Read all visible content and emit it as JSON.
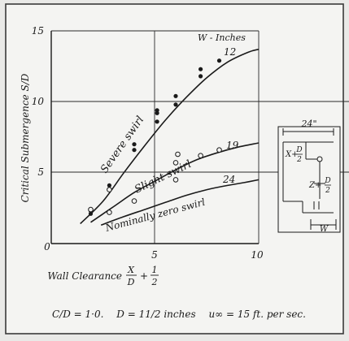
{
  "chart_data": {
    "type": "scatter",
    "title": "",
    "xlabel": "Wall Clearance",
    "xlabel_expr": {
      "num": "X",
      "den": "D",
      "plus": "+",
      "fnum": "1",
      "fden": "2"
    },
    "ylabel": "Critical Submergence S/D",
    "xlim": [
      0,
      10
    ],
    "ylim": [
      0,
      15
    ],
    "x_ticks": [
      "0",
      "5",
      "10"
    ],
    "y_ticks": [
      "5",
      "10",
      "15"
    ],
    "grid": true,
    "legend_header": "W - Inches",
    "series": [
      {
        "name": "Severe swirl",
        "w_label": "12",
        "marker": "filled",
        "color": "#1a1a1a",
        "points": [
          [
            1.9,
            2.1
          ],
          [
            1.9,
            2.3
          ],
          [
            2.8,
            3.8
          ],
          [
            2.8,
            4.1
          ],
          [
            4.0,
            6.6
          ],
          [
            4.0,
            7.0
          ],
          [
            5.1,
            8.6
          ],
          [
            5.1,
            9.2
          ],
          [
            5.1,
            9.4
          ],
          [
            6.0,
            9.8
          ],
          [
            6.0,
            10.4
          ],
          [
            7.2,
            11.8
          ],
          [
            7.2,
            12.3
          ],
          [
            8.1,
            12.9
          ]
        ],
        "curve": [
          [
            1.4,
            1.4
          ],
          [
            2.5,
            3.0
          ],
          [
            3.5,
            5.0
          ],
          [
            4.5,
            6.9
          ],
          [
            5.5,
            8.7
          ],
          [
            6.5,
            10.3
          ],
          [
            7.5,
            11.7
          ],
          [
            8.5,
            12.8
          ],
          [
            9.5,
            13.5
          ],
          [
            10.0,
            13.7
          ]
        ]
      },
      {
        "name": "Slight swirl",
        "w_label": "19",
        "marker": "open",
        "color": "#1a1a1a",
        "points": [
          [
            1.9,
            2.4
          ],
          [
            2.8,
            2.2
          ],
          [
            2.8,
            3.8
          ],
          [
            4.0,
            3.0
          ],
          [
            6.0,
            4.5
          ],
          [
            6.0,
            5.7
          ],
          [
            6.1,
            6.3
          ],
          [
            7.2,
            6.2
          ],
          [
            8.1,
            6.6
          ]
        ],
        "curve": [
          [
            1.9,
            1.5
          ],
          [
            3.0,
            2.6
          ],
          [
            4.0,
            3.6
          ],
          [
            5.0,
            4.4
          ],
          [
            6.0,
            5.2
          ],
          [
            7.0,
            5.9
          ],
          [
            8.0,
            6.4
          ],
          [
            9.0,
            6.8
          ],
          [
            10.0,
            7.1
          ]
        ]
      },
      {
        "name": "Nominally zero swirl",
        "w_label": "24",
        "marker": "none",
        "color": "#1a1a1a",
        "points": [],
        "curve": [
          [
            2.4,
            1.3
          ],
          [
            3.5,
            1.9
          ],
          [
            4.5,
            2.4
          ],
          [
            5.5,
            2.9
          ],
          [
            6.5,
            3.4
          ],
          [
            7.5,
            3.8
          ],
          [
            8.5,
            4.1
          ],
          [
            9.3,
            4.3
          ],
          [
            10.0,
            4.5
          ]
        ]
      }
    ],
    "inset": {
      "width_label": "24\"",
      "x_label": "X+",
      "x_frac_num": "D",
      "x_frac_den": "2",
      "z_label": "Z+",
      "z_frac_num": "D",
      "z_frac_den": "2",
      "w_label": "W"
    },
    "footnote": {
      "cd": "C/D = 1·0.",
      "d": "D = 11/2 inches",
      "u": "u∞ = 15 ft. per sec."
    }
  }
}
